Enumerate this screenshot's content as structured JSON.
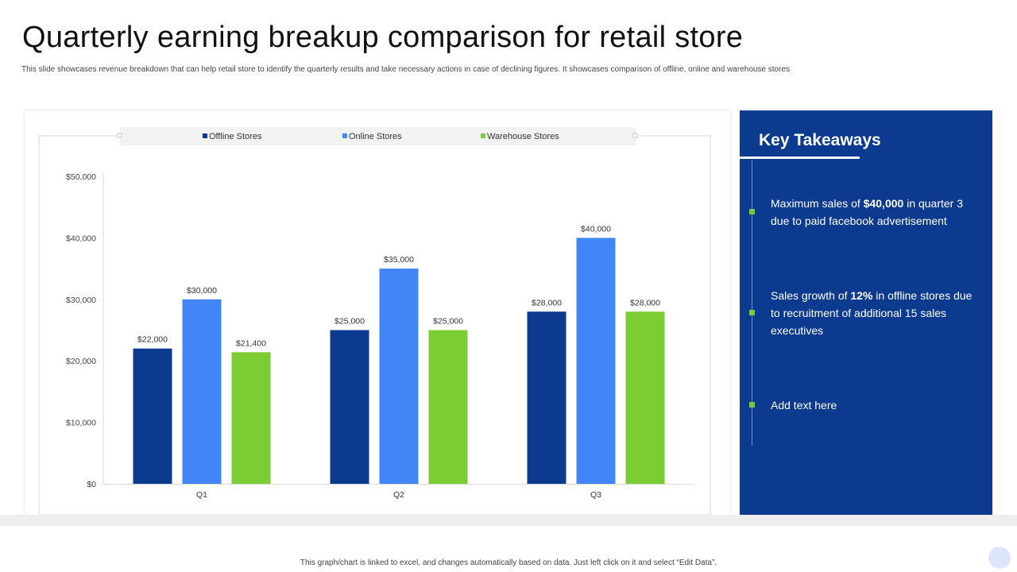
{
  "header": {
    "title": "Quarterly earning breakup comparison for retail store",
    "subtitle": "This slide showcases revenue breakdown that can help retail store to identify the quarterly results and take necessary actions in case of declining figures. It showcases comparison of offline, online and warehouse stores"
  },
  "chart_data": {
    "type": "bar",
    "title": "",
    "xlabel": "",
    "ylabel": "",
    "categories": [
      "Q1",
      "Q2",
      "Q3"
    ],
    "series": [
      {
        "name": "Offline Stores",
        "values": [
          22000,
          25000,
          28000
        ],
        "labels": [
          "$22,000",
          "$25,000",
          "$28,000"
        ],
        "color": "#0b3a8f"
      },
      {
        "name": "Online Stores",
        "values": [
          30000,
          35000,
          40000
        ],
        "labels": [
          "$30,000",
          "$35,000",
          "$40,000"
        ],
        "color": "#4285f4"
      },
      {
        "name": "Warehouse Stores",
        "values": [
          21400,
          25000,
          28000
        ],
        "labels": [
          "$21,400",
          "$25,000",
          "$28,000"
        ],
        "color": "#7ccc33"
      }
    ],
    "ylim": [
      0,
      50000
    ],
    "yticks": [
      0,
      10000,
      20000,
      30000,
      40000,
      50000
    ],
    "ytick_labels": [
      "$0",
      "$10,000",
      "$20,000",
      "$30,000",
      "$40,000",
      "$50,000"
    ],
    "legend_position": "top",
    "grid": false
  },
  "takeaways": {
    "title": "Key Takeaways",
    "items": [
      {
        "pre": "Maximum  sales of ",
        "bold": "$40,000",
        "post": " in quarter 3 due to paid facebook advertisement"
      },
      {
        "pre": "Sales growth of ",
        "bold": "12%",
        "post": "  in offline stores due to recruitment of additional 15 sales executives"
      },
      {
        "pre": "Add text here",
        "bold": "",
        "post": ""
      }
    ]
  },
  "footer": {
    "note": "This graph/chart is linked to excel, and changes automatically based on data. Just left click on it and select “Edit Data”."
  },
  "colors": {
    "panel": "#0b3a8f",
    "accent": "#6fcf3c"
  }
}
